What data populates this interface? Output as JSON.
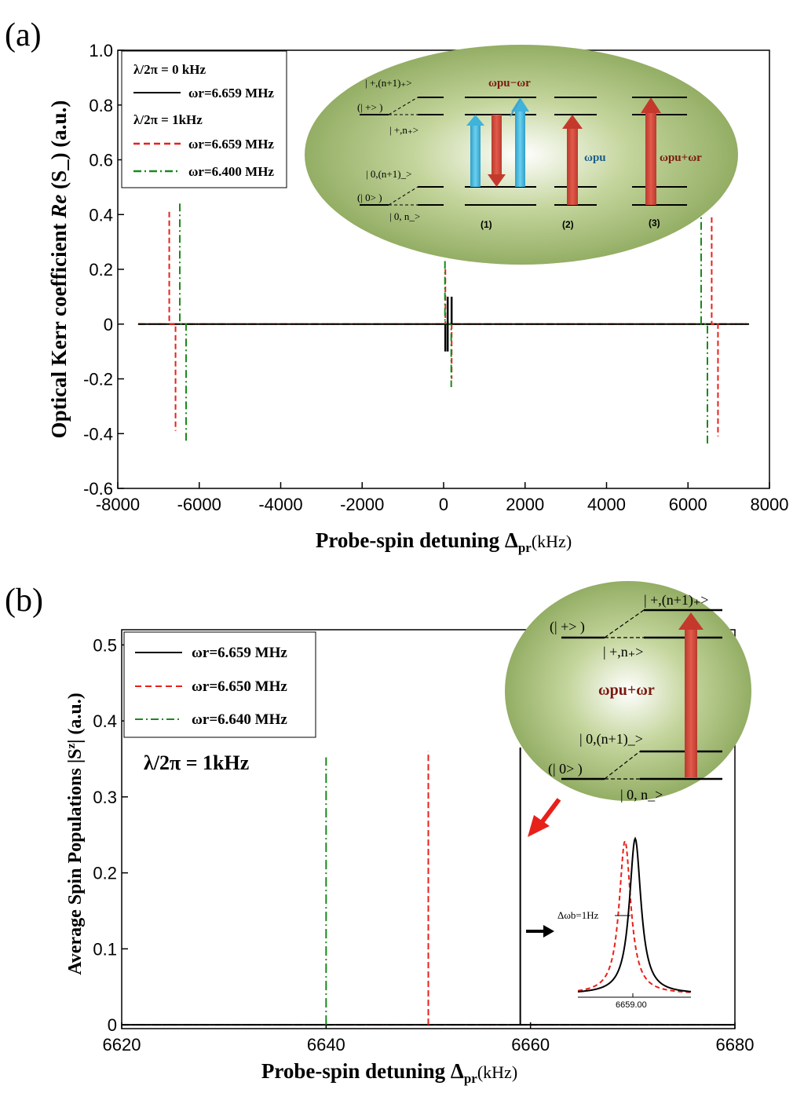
{
  "chart_data": [
    {
      "panel": "(a)",
      "type": "line",
      "xlabel_main": "Probe-spin detuning Δ",
      "xlabel_sub": "pr",
      "xlabel_unit": "(kHz)",
      "ylabel_prefix": "Optical Kerr coefficient ",
      "ylabel_italic": "Re",
      "ylabel_suffix": " (S_) (a.u.)",
      "xlim": [
        -8000,
        8000
      ],
      "ylim": [
        -0.6,
        1.0
      ],
      "xticks": [
        -8000,
        -6000,
        -4000,
        -2000,
        0,
        2000,
        4000,
        6000,
        8000
      ],
      "yticks": [
        -0.6,
        -0.4,
        -0.2,
        0,
        0.2,
        0.4,
        0.6,
        0.8,
        1.0
      ],
      "legend": [
        {
          "header": "λ/2π = 0 kHz"
        },
        {
          "label": "ωr=6.659 MHz",
          "color": "#000000",
          "style": "solid"
        },
        {
          "header": "λ/2π = 1kHz"
        },
        {
          "label": "ωr=6.659 MHz",
          "color": "#e8201a",
          "style": "dashed"
        },
        {
          "label": "ωr=6.400 MHz",
          "color": "#1a8a1a",
          "style": "dashdot"
        }
      ],
      "series": [
        {
          "name": "λ/2π=0 kHz, ωr=6.659 MHz",
          "color": "#000000",
          "x": [
            -7500,
            -120,
            -120,
            -100,
            -80,
            80,
            100,
            120,
            120,
            7500
          ],
          "y": [
            0,
            0,
            -0.1,
            -0.1,
            0,
            0,
            0.1,
            0.1,
            0,
            0
          ]
        },
        {
          "name": "λ/2π=1kHz, ωr=6.659 MHz",
          "color": "#e8201a",
          "x": [
            -7500,
            -6680,
            -6665,
            -6660,
            -6655,
            -6640,
            -6600,
            -6500,
            7500
          ],
          "y": [
            0,
            0.0,
            0.41,
            0.0,
            -0.39,
            0.01,
            0.0,
            0,
            0
          ]
        },
        {
          "name": "λ/2π=1kHz, ωr=6.400 MHz",
          "color": "#1a8a1a",
          "x": [
            -7500,
            -6410,
            -6400,
            -6390,
            7500
          ],
          "y": [
            0,
            0.44,
            0,
            -0.43,
            0
          ]
        }
      ],
      "spikes": [
        {
          "series": 1,
          "x": -6659,
          "top": 0.41,
          "bottom": -0.39
        },
        {
          "series": 2,
          "x": -6400,
          "top": 0.44,
          "bottom": -0.43
        },
        {
          "series": 1,
          "x": 120,
          "top": 0.2,
          "bottom": -0.2
        },
        {
          "series": 2,
          "x": 110,
          "top": 0.23,
          "bottom": -0.23
        },
        {
          "series": 0,
          "x": 100,
          "top": 0.1,
          "bottom": -0.1
        },
        {
          "series": 2,
          "x": 6400,
          "top": 0.43,
          "bottom": -0.44
        },
        {
          "series": 1,
          "x": 6659,
          "top": 0.39,
          "bottom": -0.41
        }
      ],
      "inset": {
        "top_state": "| +,(n+1)₊>",
        "upper_bare": "(| +> )",
        "upper_dressed": "| +,n₊>",
        "lower_state": "| 0,(n+1)_>",
        "lower_bare": "(| 0> )",
        "lower_dressed": "| 0,  n_>",
        "label_diff": "ωpu−ωr",
        "label_pu": "ωpu",
        "label_sum": "ωpu+ωr",
        "process_labels": [
          "(1)",
          "(2)",
          "(3)"
        ]
      }
    },
    {
      "panel": "(b)",
      "type": "line",
      "xlabel_main": "Probe-spin detuning Δ",
      "xlabel_sub": "pr",
      "xlabel_unit": "(kHz)",
      "ylabel": "Average Spin Populations |S",
      "ylabel_sup": "z",
      "ylabel_end": "| (a.u.)",
      "xlim": [
        6620,
        6680
      ],
      "ylim": [
        -0.005,
        0.52
      ],
      "xticks": [
        6620,
        6640,
        6660,
        6680
      ],
      "yticks": [
        0,
        0.1,
        0.2,
        0.3,
        0.4,
        0.5
      ],
      "ytick_labels": [
        "0",
        "0.1",
        "0.2",
        "0.3",
        "0.4",
        "0.5"
      ],
      "annotation": "λ/2π = 1kHz",
      "legend": [
        {
          "label": "ωr=6.659 MHz",
          "color": "#000000",
          "style": "solid"
        },
        {
          "label": "ωr=6.650 MHz",
          "color": "#e8201a",
          "style": "dashed"
        },
        {
          "label": "ωr=6.640 MHz",
          "color": "#1a8a1a",
          "style": "dashdot"
        }
      ],
      "peaks": [
        {
          "series": 0,
          "x": 6659,
          "height": 0.365
        },
        {
          "series": 1,
          "x": 6650,
          "height": 0.36
        },
        {
          "series": 2,
          "x": 6640,
          "height": 0.352
        }
      ],
      "inset": {
        "top_state": "| +,(n+1)₊>",
        "upper_bare": "(| +> )",
        "upper_dressed": "| +,n₊>",
        "label_sum": "ωpu+ωr",
        "lower_state": "| 0,(n+1)_>",
        "lower_bare": "(| 0> )",
        "lower_dressed": "| 0,  n_>"
      },
      "zoom": {
        "annotation": "Δωb=1Hz",
        "xtick": "6659.00"
      }
    }
  ]
}
